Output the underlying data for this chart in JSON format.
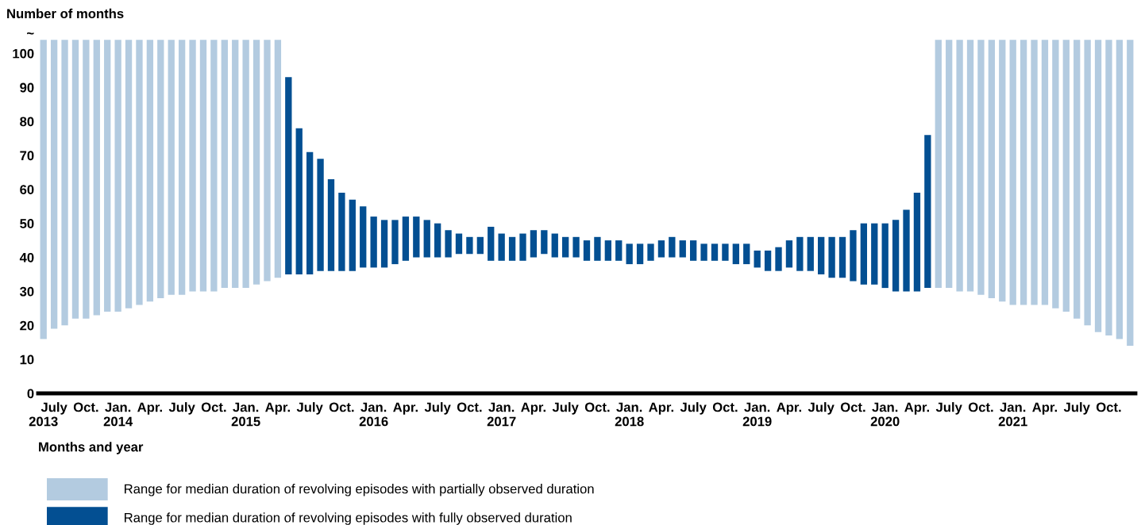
{
  "chart_data": {
    "type": "bar",
    "ylabel": "Number of months",
    "xlabel": "Months and year",
    "categories": [
      "\n2013",
      "July",
      null,
      null,
      "Oct.",
      null,
      null,
      "Jan.\n2014",
      null,
      null,
      "Apr.",
      null,
      null,
      "July",
      null,
      null,
      "Oct.",
      null,
      null,
      "Jan.\n2015",
      null,
      null,
      "Apr.",
      null,
      null,
      "July",
      null,
      null,
      "Oct.",
      null,
      null,
      "Jan.\n2016",
      null,
      null,
      "Apr.",
      null,
      null,
      "July",
      null,
      null,
      "Oct.",
      null,
      null,
      "Jan.\n2017",
      null,
      null,
      "Apr.",
      null,
      null,
      "July",
      null,
      null,
      "Oct.",
      null,
      null,
      "Jan.\n2018",
      null,
      null,
      "Apr.",
      null,
      null,
      "July",
      null,
      null,
      "Oct.",
      null,
      null,
      "Jan.\n2019",
      null,
      null,
      "Apr.",
      null,
      null,
      "July",
      null,
      null,
      "Oct.",
      null,
      null,
      "Jan.\n2020",
      null,
      null,
      "Apr.",
      null,
      null,
      "July",
      null,
      null,
      "Oct.",
      null,
      null,
      "Jan.\n2021",
      null,
      null,
      "Apr.",
      null,
      null,
      "July",
      null,
      null,
      "Oct.",
      null,
      null
    ],
    "series": [
      {
        "name": "Range for median duration of revolving episodes with partially observed duration",
        "color": "#b3cbe0",
        "base": [
          16,
          19,
          20,
          22,
          22,
          23,
          24,
          24,
          25,
          26,
          27,
          28,
          29,
          29,
          30,
          30,
          30,
          31,
          31,
          31,
          32,
          33,
          34,
          null,
          null,
          null,
          null,
          null,
          null,
          null,
          null,
          null,
          null,
          null,
          null,
          null,
          null,
          null,
          null,
          null,
          null,
          null,
          null,
          null,
          null,
          null,
          null,
          null,
          null,
          null,
          null,
          null,
          null,
          null,
          null,
          null,
          null,
          null,
          null,
          null,
          null,
          null,
          null,
          null,
          null,
          null,
          null,
          null,
          null,
          null,
          null,
          null,
          null,
          null,
          null,
          null,
          null,
          null,
          null,
          null,
          null,
          null,
          null,
          null,
          31,
          31,
          30,
          30,
          29,
          28,
          27,
          26,
          26,
          26,
          26,
          25,
          24,
          22,
          20,
          18,
          17,
          16,
          14
        ],
        "values": [
          88,
          85,
          84,
          82,
          82,
          81,
          80,
          80,
          79,
          78,
          77,
          76,
          75,
          75,
          74,
          74,
          74,
          73,
          73,
          73,
          72,
          71,
          70,
          null,
          null,
          null,
          null,
          null,
          null,
          null,
          null,
          null,
          null,
          null,
          null,
          null,
          null,
          null,
          null,
          null,
          null,
          null,
          null,
          null,
          null,
          null,
          null,
          null,
          null,
          null,
          null,
          null,
          null,
          null,
          null,
          null,
          null,
          null,
          null,
          null,
          null,
          null,
          null,
          null,
          null,
          null,
          null,
          null,
          null,
          null,
          null,
          null,
          null,
          null,
          null,
          null,
          null,
          null,
          null,
          null,
          null,
          null,
          null,
          null,
          73,
          73,
          74,
          74,
          75,
          76,
          77,
          78,
          78,
          78,
          78,
          79,
          80,
          82,
          84,
          86,
          87,
          88,
          90
        ]
      },
      {
        "name": "Range for median duration of revolving episodes with fully observed duration",
        "color": "#034f92",
        "base": [
          null,
          null,
          null,
          null,
          null,
          null,
          null,
          null,
          null,
          null,
          null,
          null,
          null,
          null,
          null,
          null,
          null,
          null,
          null,
          null,
          null,
          null,
          null,
          35,
          35,
          35,
          36,
          36,
          36,
          36,
          37,
          37,
          37,
          38,
          39,
          40,
          40,
          40,
          40,
          41,
          41,
          41,
          39,
          39,
          39,
          39,
          40,
          41,
          40,
          40,
          40,
          39,
          39,
          39,
          39,
          38,
          38,
          39,
          40,
          40,
          40,
          39,
          39,
          39,
          39,
          38,
          38,
          37,
          36,
          36,
          37,
          36,
          36,
          35,
          34,
          34,
          33,
          32,
          32,
          31,
          30,
          30,
          30,
          31,
          null,
          null,
          null,
          null,
          null,
          null,
          null,
          null,
          null,
          null,
          null,
          null,
          null,
          null,
          null,
          null,
          null,
          null,
          null
        ],
        "values": [
          null,
          null,
          null,
          null,
          null,
          null,
          null,
          null,
          null,
          null,
          null,
          null,
          null,
          null,
          null,
          null,
          null,
          null,
          null,
          null,
          null,
          null,
          null,
          58,
          43,
          36,
          33,
          27,
          23,
          21,
          18,
          15,
          14,
          13,
          13,
          12,
          11,
          10,
          8,
          6,
          5,
          5,
          10,
          8,
          7,
          8,
          8,
          7,
          7,
          6,
          6,
          6,
          7,
          6,
          6,
          6,
          6,
          5,
          5,
          6,
          5,
          6,
          5,
          5,
          5,
          6,
          6,
          5,
          6,
          7,
          8,
          10,
          10,
          11,
          12,
          12,
          15,
          18,
          18,
          19,
          21,
          24,
          29,
          45,
          null,
          null,
          null,
          null,
          null,
          null,
          null,
          null,
          null,
          null,
          null,
          null,
          null,
          null,
          null,
          null,
          null,
          null,
          null
        ]
      }
    ],
    "ylim": [
      0,
      106
    ],
    "yticks": [
      0,
      10,
      20,
      30,
      40,
      50,
      60,
      70,
      80,
      90,
      100,
      {
        "value": 106,
        "label": "~"
      }
    ],
    "grid": false,
    "legend": "bottom"
  }
}
